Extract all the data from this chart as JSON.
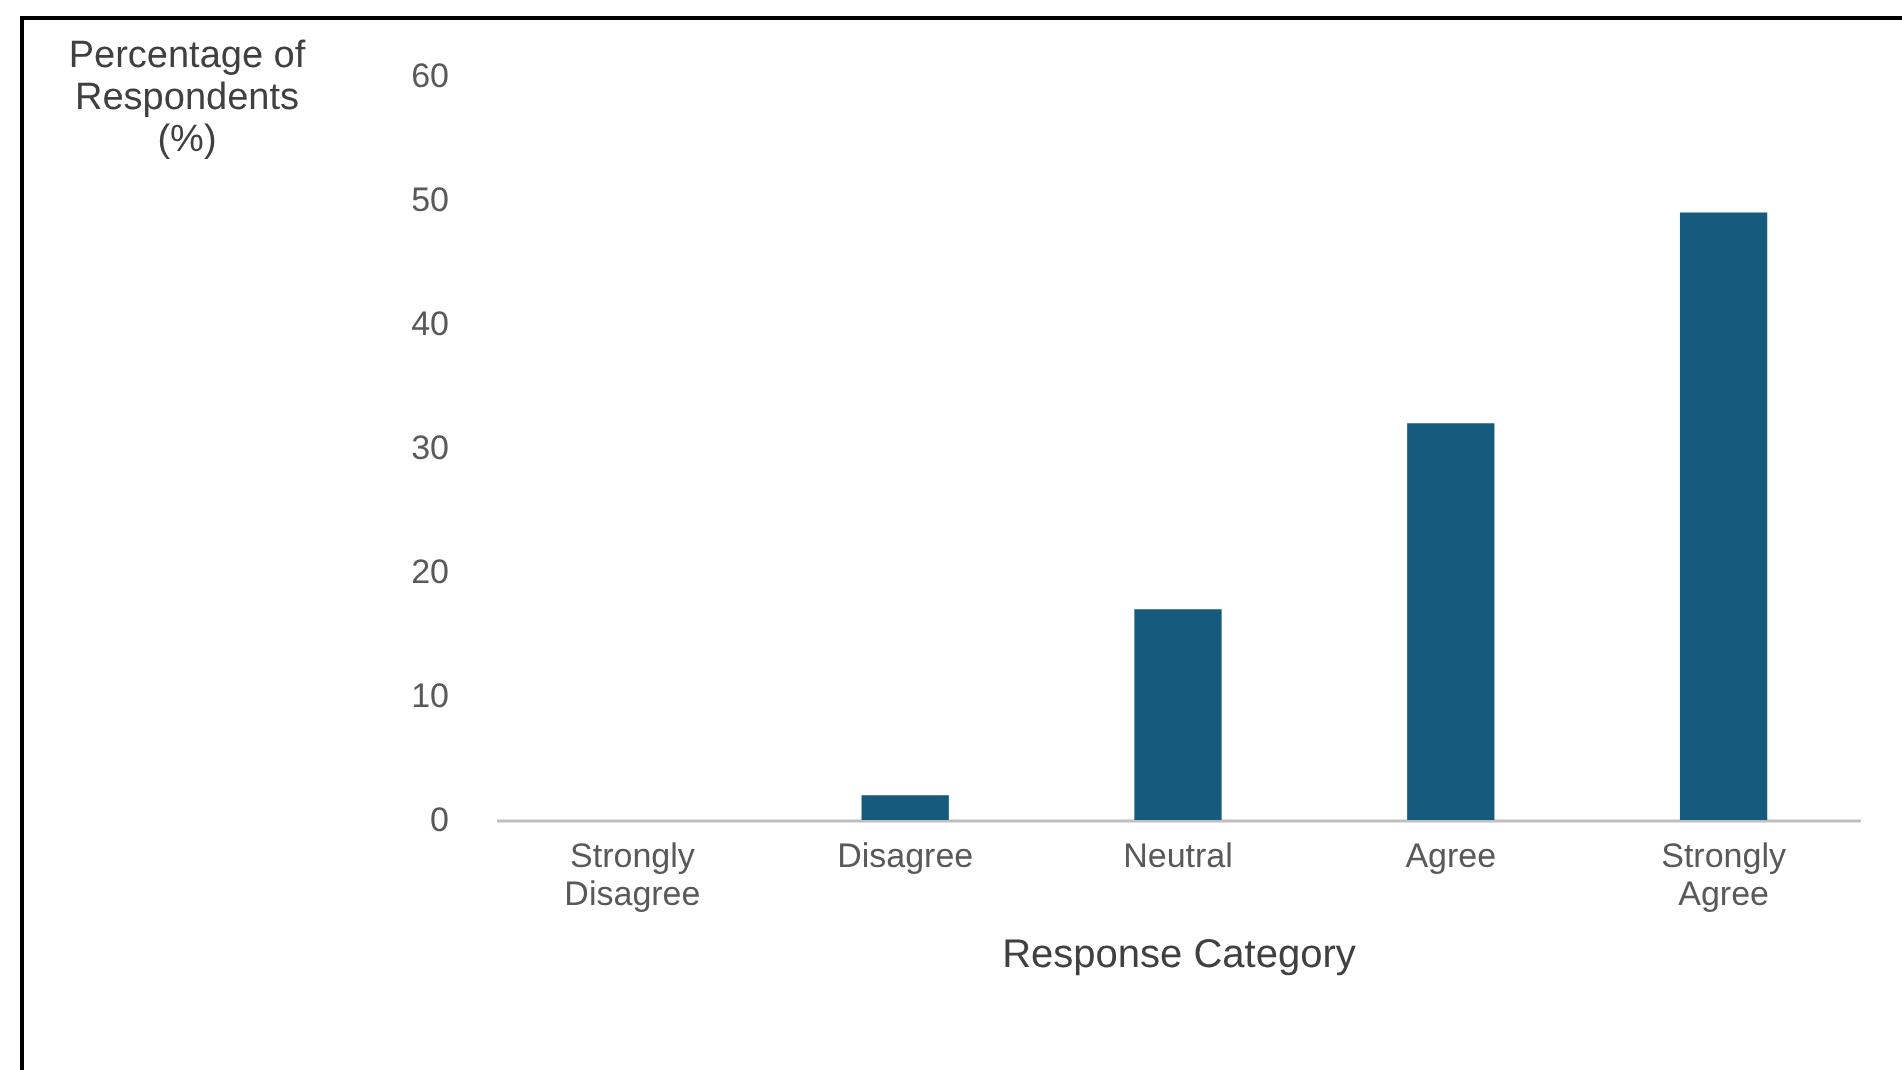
{
  "chart_data": {
    "type": "bar",
    "xlabel": "Response Category",
    "ylabel": "Percentage of Respondents (%)",
    "categories": [
      "Strongly Disagree",
      "Disagree",
      "Neutral",
      "Agree",
      "Strongly Agree"
    ],
    "values": [
      0,
      2,
      17,
      32,
      49
    ],
    "color": "#165a7e",
    "ylim": [
      0,
      60
    ],
    "yticks": [
      0,
      10,
      20,
      30,
      40,
      50,
      60
    ],
    "grid": false
  }
}
